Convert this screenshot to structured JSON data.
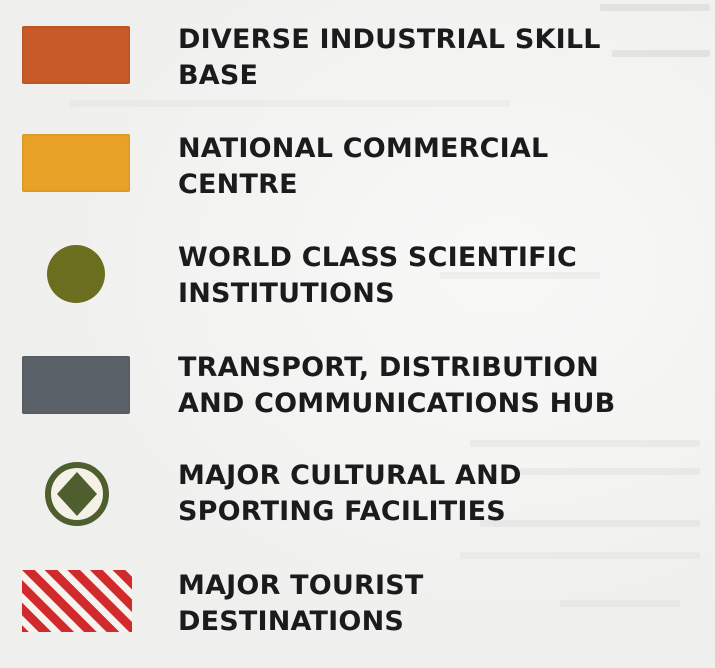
{
  "legend": {
    "items": [
      {
        "key": "industrial",
        "label_line1": "DIVERSE INDUSTRIAL SKILL",
        "label_line2": "BASE",
        "symbol": "rectangle",
        "color": "#c85a28"
      },
      {
        "key": "commercial",
        "label_line1": "NATIONAL COMMERCIAL",
        "label_line2": "CENTRE",
        "symbol": "rectangle",
        "color": "#e9a228"
      },
      {
        "key": "scientific",
        "label_line1": "WORLD CLASS SCIENTIFIC",
        "label_line2": "INSTITUTIONS",
        "symbol": "circle",
        "color": "#6b6e1f"
      },
      {
        "key": "transport",
        "label_line1": "TRANSPORT, DISTRIBUTION",
        "label_line2": "AND COMMUNICATIONS HUB",
        "symbol": "rectangle",
        "color": "#5b6168"
      },
      {
        "key": "cultural",
        "label_line1": "MAJOR CULTURAL AND",
        "label_line2": "SPORTING FACILITIES",
        "symbol": "diamond-in-ring",
        "color": "#4e5e2e"
      },
      {
        "key": "tourist",
        "label_line1": "MAJOR TOURIST",
        "label_line2": "DESTINATIONS",
        "symbol": "diagonal-stripes",
        "color": "#d12a2d"
      }
    ]
  }
}
